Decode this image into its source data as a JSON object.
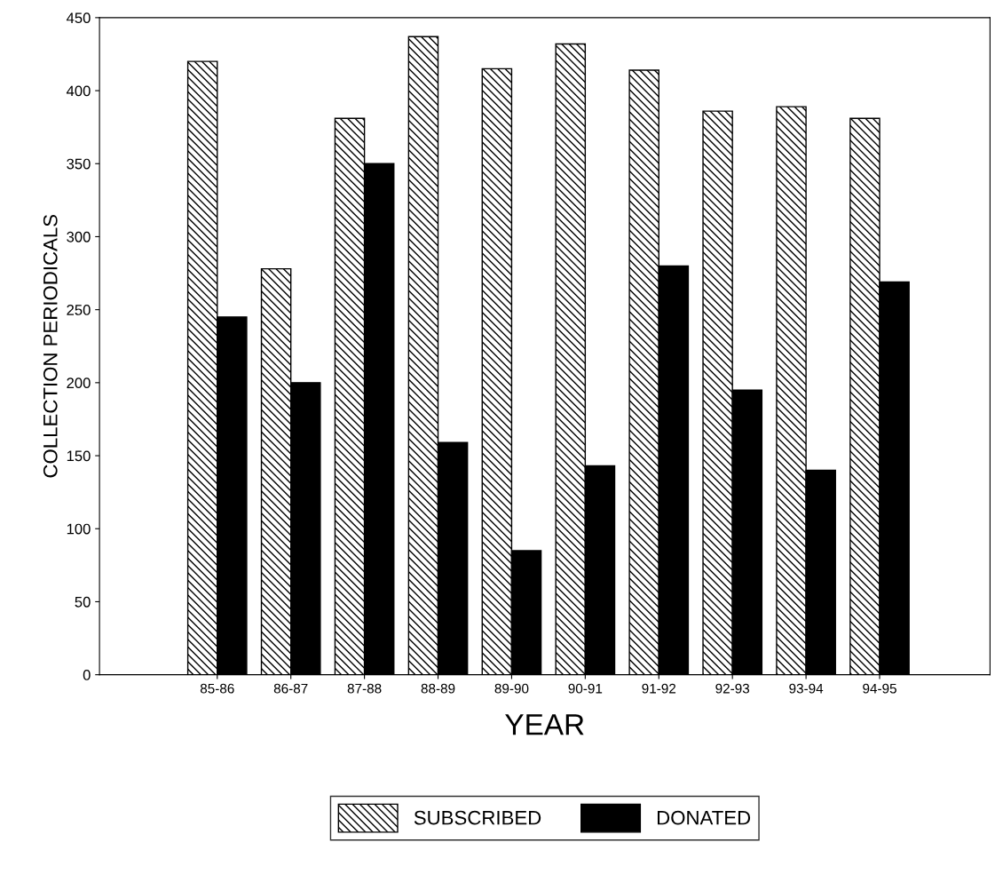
{
  "chart_data": {
    "type": "bar",
    "xlabel": "YEAR",
    "ylabel": "COLLECTION PERIODICALS",
    "categories": [
      "85-86",
      "86-87",
      "87-88",
      "88-89",
      "89-90",
      "90-91",
      "91-92",
      "92-93",
      "93-94",
      "94-95"
    ],
    "series": [
      {
        "name": "SUBSCRIBED",
        "color": "#000000",
        "values": [
          420,
          278,
          381,
          437,
          415,
          432,
          414,
          386,
          389,
          381
        ]
      },
      {
        "name": "DONATED",
        "color": "#000000",
        "values": [
          245,
          200,
          350,
          159,
          85,
          143,
          280,
          195,
          140,
          269
        ]
      }
    ],
    "ylim": [
      0,
      450
    ],
    "yticks": [
      0,
      50,
      100,
      150,
      200,
      250,
      300,
      350,
      400,
      450
    ],
    "grid": false,
    "legend": "bottom"
  }
}
